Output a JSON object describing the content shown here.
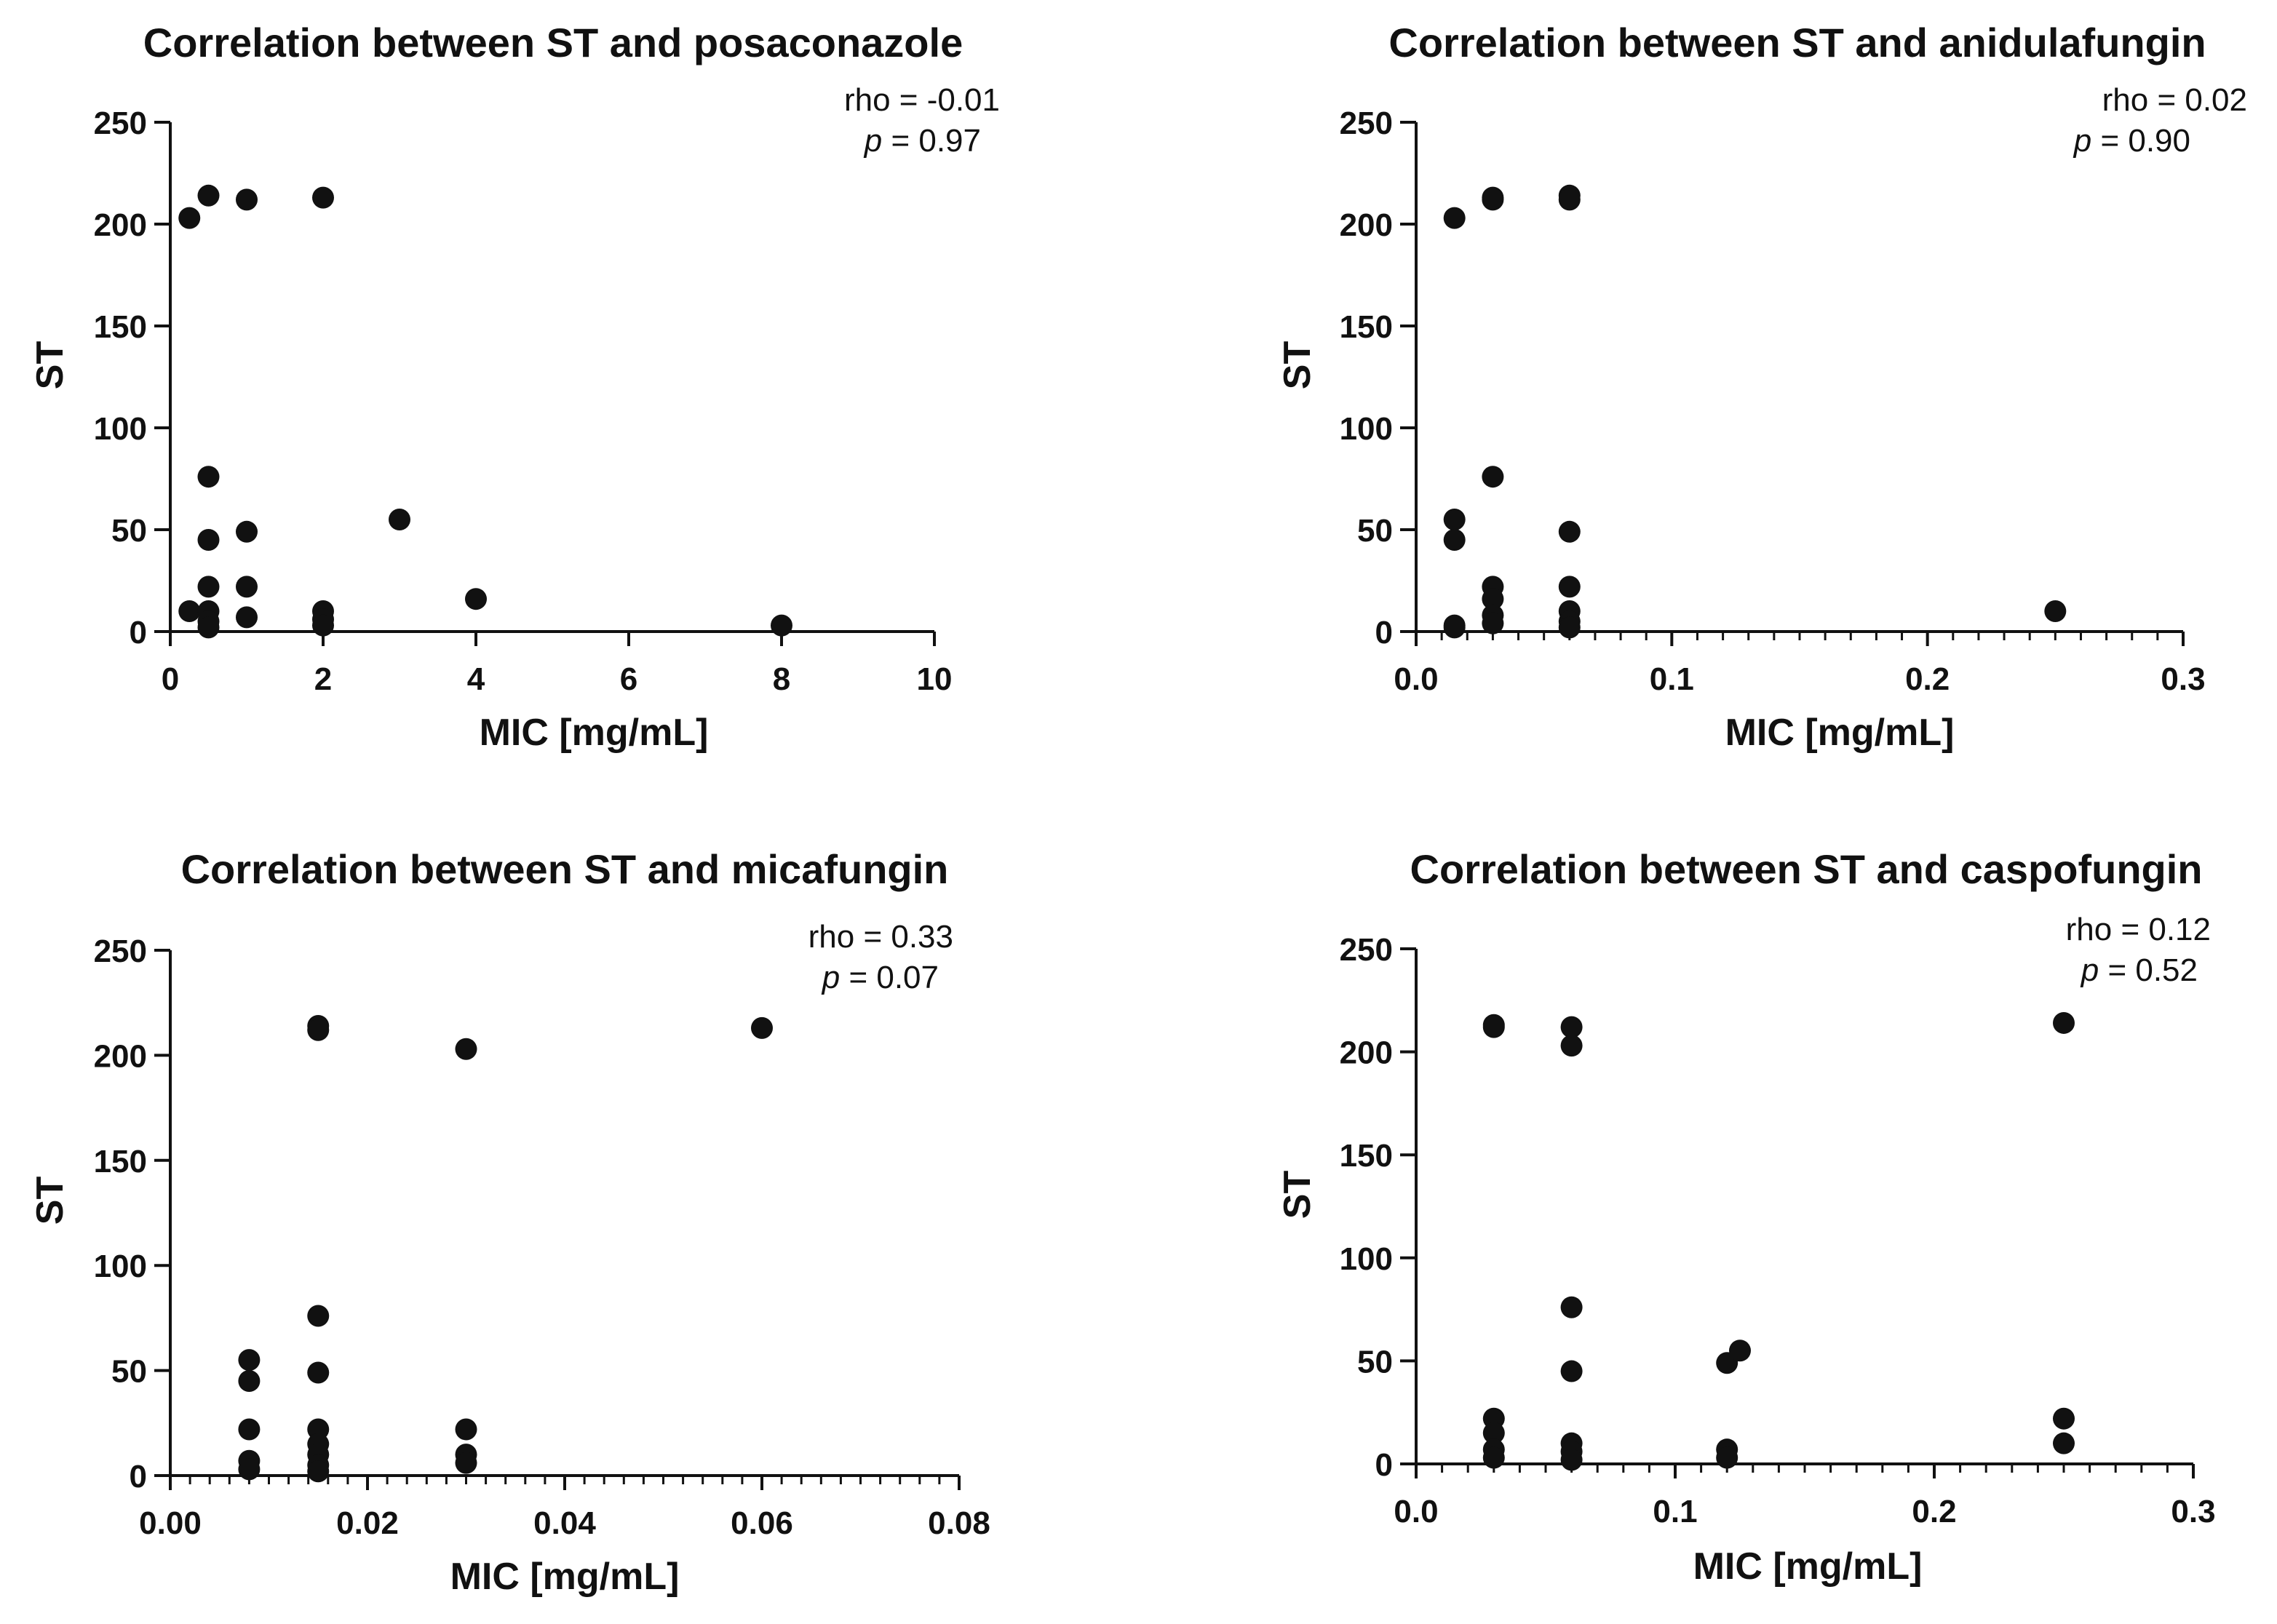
{
  "chart_data": [
    {
      "type": "scatter",
      "title": "Correlation between ST and posaconazole",
      "xlabel": "MIC [mg/mL]",
      "ylabel": "ST",
      "xlim": [
        0,
        10
      ],
      "ylim": [
        0,
        250
      ],
      "xticks": [
        "0",
        "2",
        "4",
        "6",
        "8",
        "10"
      ],
      "yticks": [
        "0",
        "50",
        "100",
        "150",
        "200",
        "250"
      ],
      "rho_label": "rho = -0.01",
      "p_symbol": "p",
      "p_rest": " = 0.97",
      "points": [
        [
          0.25,
          203
        ],
        [
          0.5,
          214
        ],
        [
          1,
          212
        ],
        [
          2,
          213
        ],
        [
          0.5,
          76
        ],
        [
          1,
          49
        ],
        [
          0.5,
          45
        ],
        [
          3,
          55
        ],
        [
          0.5,
          22
        ],
        [
          1,
          22
        ],
        [
          4,
          16
        ],
        [
          0.25,
          10
        ],
        [
          0.5,
          10
        ],
        [
          0.5,
          5
        ],
        [
          0.5,
          2
        ],
        [
          1,
          7
        ],
        [
          2,
          10
        ],
        [
          2,
          6
        ],
        [
          2,
          3
        ],
        [
          8,
          3
        ]
      ]
    },
    {
      "type": "scatter",
      "title": "Correlation between ST and anidulafungin",
      "xlabel": "MIC [mg/mL]",
      "ylabel": "ST",
      "xlim": [
        0,
        0.3
      ],
      "ylim": [
        0,
        250
      ],
      "xticks": [
        "0.0",
        "0.1",
        "0.2",
        "0.3"
      ],
      "yticks": [
        "0",
        "50",
        "100",
        "150",
        "200",
        "250"
      ],
      "rho_label": "rho = 0.02",
      "p_symbol": "p",
      "p_rest": " = 0.90",
      "points": [
        [
          0.015,
          203
        ],
        [
          0.03,
          213
        ],
        [
          0.03,
          212
        ],
        [
          0.06,
          214
        ],
        [
          0.06,
          212
        ],
        [
          0.03,
          76
        ],
        [
          0.015,
          55
        ],
        [
          0.015,
          45
        ],
        [
          0.06,
          49
        ],
        [
          0.03,
          22
        ],
        [
          0.06,
          22
        ],
        [
          0.03,
          16
        ],
        [
          0.03,
          8
        ],
        [
          0.03,
          4
        ],
        [
          0.015,
          3
        ],
        [
          0.015,
          2
        ],
        [
          0.06,
          10
        ],
        [
          0.06,
          5
        ],
        [
          0.06,
          2
        ],
        [
          0.25,
          10
        ]
      ]
    },
    {
      "type": "scatter",
      "title": "Correlation between ST and micafungin",
      "xlabel": "MIC [mg/mL]",
      "ylabel": "ST",
      "xlim": [
        0,
        0.08
      ],
      "ylim": [
        0,
        250
      ],
      "xticks": [
        "0.00",
        "0.02",
        "0.04",
        "0.06",
        "0.08"
      ],
      "yticks": [
        "0",
        "50",
        "100",
        "150",
        "200",
        "250"
      ],
      "rho_label": "rho = 0.33",
      "p_symbol": "p",
      "p_rest": " = 0.07",
      "points": [
        [
          0.015,
          214
        ],
        [
          0.015,
          212
        ],
        [
          0.03,
          203
        ],
        [
          0.06,
          213
        ],
        [
          0.015,
          76
        ],
        [
          0.008,
          55
        ],
        [
          0.008,
          45
        ],
        [
          0.015,
          49
        ],
        [
          0.008,
          22
        ],
        [
          0.015,
          22
        ],
        [
          0.015,
          15
        ],
        [
          0.015,
          10
        ],
        [
          0.015,
          5
        ],
        [
          0.015,
          2
        ],
        [
          0.008,
          7
        ],
        [
          0.008,
          3
        ],
        [
          0.03,
          22
        ],
        [
          0.03,
          10
        ],
        [
          0.03,
          6
        ]
      ]
    },
    {
      "type": "scatter",
      "title": "Correlation between ST and caspofungin",
      "xlabel": "MIC [mg/mL]",
      "ylabel": "ST",
      "xlim": [
        0,
        0.3
      ],
      "ylim": [
        0,
        250
      ],
      "xticks": [
        "0.0",
        "0.1",
        "0.2",
        "0.3"
      ],
      "yticks": [
        "0",
        "50",
        "100",
        "150",
        "200",
        "250"
      ],
      "rho_label": "rho = 0.12",
      "p_symbol": "p",
      "p_rest": " = 0.52",
      "points": [
        [
          0.03,
          213
        ],
        [
          0.03,
          212
        ],
        [
          0.06,
          212
        ],
        [
          0.06,
          203
        ],
        [
          0.25,
          214
        ],
        [
          0.06,
          76
        ],
        [
          0.06,
          45
        ],
        [
          0.12,
          49
        ],
        [
          0.125,
          55
        ],
        [
          0.03,
          22
        ],
        [
          0.03,
          15
        ],
        [
          0.03,
          7
        ],
        [
          0.03,
          3
        ],
        [
          0.06,
          10
        ],
        [
          0.06,
          6
        ],
        [
          0.06,
          2
        ],
        [
          0.12,
          7
        ],
        [
          0.12,
          3
        ],
        [
          0.25,
          22
        ],
        [
          0.25,
          10
        ]
      ]
    }
  ]
}
